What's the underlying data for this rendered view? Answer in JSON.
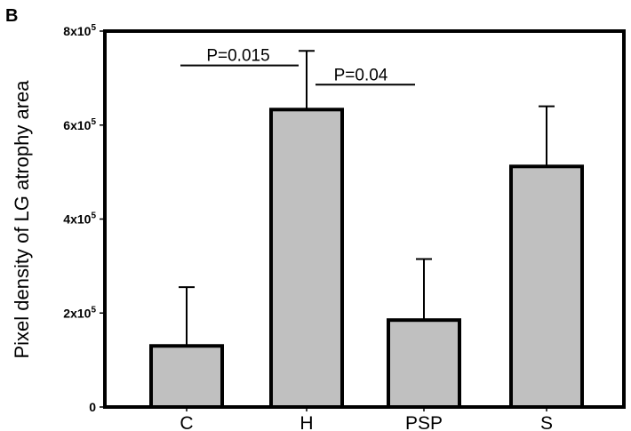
{
  "panel_label": "B",
  "colors": {
    "bar_fill": "#c0c0c0",
    "bar_stroke": "#000000",
    "axis": "#000000",
    "background": "#ffffff"
  },
  "chart_data": {
    "type": "bar",
    "title": "",
    "xlabel": "",
    "ylabel": "Pixel density of LG atrophy area",
    "categories": [
      "C",
      "H",
      "PSP",
      "S"
    ],
    "series": [
      {
        "values": [
          130000,
          633000,
          185000,
          512000
        ],
        "error_upper": [
          125000,
          125000,
          130000,
          128000
        ]
      }
    ],
    "ylim": [
      0,
      800000
    ],
    "y_ticks": [
      {
        "value": 0,
        "base": "0",
        "exp": ""
      },
      {
        "value": 200000,
        "base": "2x10",
        "exp": "5"
      },
      {
        "value": 400000,
        "base": "4x10",
        "exp": "5"
      },
      {
        "value": 600000,
        "base": "6x10",
        "exp": "5"
      },
      {
        "value": 800000,
        "base": "8x10",
        "exp": "5"
      }
    ],
    "grid": false,
    "legend": "none",
    "annotations": [
      {
        "text": "P=0.015",
        "from": "C",
        "to": "H",
        "y": 727000
      },
      {
        "text": "P=0.04",
        "from": "H",
        "to": "PSP",
        "y": 686000
      }
    ]
  }
}
